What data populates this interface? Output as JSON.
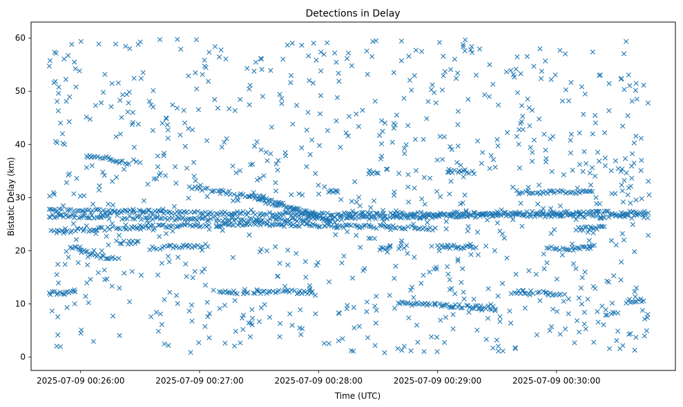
{
  "chart_data": {
    "type": "scatter",
    "title": "Detections in Delay",
    "xlabel": "Time (UTC)",
    "ylabel": "Bistatic Delay (km)",
    "marker": "x",
    "color": "#1f77b4",
    "grid": false,
    "xlim": [
      "2025-07-09 00:25:35",
      "2025-07-09 00:31:00"
    ],
    "ylim": [
      -2.5,
      63
    ],
    "x_ticks": [
      "2025-07-09 00:26:00",
      "2025-07-09 00:27:00",
      "2025-07-09 00:28:00",
      "2025-07-09 00:29:00",
      "2025-07-09 00:30:00"
    ],
    "y_ticks": [
      0,
      10,
      20,
      30,
      40,
      50,
      60
    ],
    "x_range": [
      "2025-07-09 00:25:44",
      "2025-07-09 00:30:47"
    ],
    "y_range": [
      0.8,
      59.8
    ],
    "tracks": [
      {
        "points": [
          [
            "2025-07-09 00:25:44",
            27.6
          ],
          [
            "2025-07-09 00:28:00",
            26.8
          ],
          [
            "2025-07-09 00:30:47",
            27.2
          ]
        ]
      },
      {
        "points": [
          [
            "2025-07-09 00:25:44",
            26.6
          ],
          [
            "2025-07-09 00:26:30",
            26.2
          ],
          [
            "2025-07-09 00:27:30",
            25.8
          ],
          [
            "2025-07-09 00:28:30",
            26.2
          ],
          [
            "2025-07-09 00:29:30",
            26.8
          ],
          [
            "2025-07-09 00:30:47",
            26.4
          ]
        ]
      },
      {
        "points": [
          [
            "2025-07-09 00:25:44",
            23.5
          ],
          [
            "2025-07-09 00:26:30",
            24.5
          ],
          [
            "2025-07-09 00:27:30",
            25.0
          ],
          [
            "2025-07-09 00:28:30",
            24.5
          ],
          [
            "2025-07-09 00:29:00",
            24.2
          ]
        ]
      },
      {
        "points": [
          [
            "2025-07-09 00:25:44",
            12.0
          ],
          [
            "2025-07-09 00:25:58",
            12.3
          ]
        ]
      },
      {
        "points": [
          [
            "2025-07-09 00:26:02",
            38.0
          ],
          [
            "2025-07-09 00:26:12",
            37.5
          ],
          [
            "2025-07-09 00:26:25",
            36.3
          ]
        ]
      },
      {
        "points": [
          [
            "2025-07-09 00:25:52",
            40.0
          ],
          [
            "2025-07-09 00:25:49",
            46.0
          ],
          [
            "2025-07-09 00:25:47",
            50.0
          ]
        ]
      },
      {
        "points": [
          [
            "2025-07-09 00:25:55",
            20.8
          ],
          [
            "2025-07-09 00:26:08",
            19.0
          ],
          [
            "2025-07-09 00:26:20",
            18.5
          ]
        ]
      },
      {
        "points": [
          [
            "2025-07-09 00:26:20",
            21.5
          ],
          [
            "2025-07-09 00:26:30",
            21.6
          ]
        ]
      },
      {
        "points": [
          [
            "2025-07-09 00:26:35",
            20.5
          ],
          [
            "2025-07-09 00:26:50",
            20.8
          ]
        ]
      },
      {
        "points": [
          [
            "2025-07-09 00:26:55",
            32.0
          ],
          [
            "2025-07-09 00:27:30",
            30.0
          ],
          [
            "2025-07-09 00:28:00",
            26.5
          ]
        ]
      },
      {
        "points": [
          [
            "2025-07-09 00:27:25",
            30.0
          ],
          [
            "2025-07-09 00:28:00",
            26.5
          ],
          [
            "2025-07-09 00:28:10",
            25.0
          ]
        ]
      },
      {
        "points": [
          [
            "2025-07-09 00:27:10",
            12.2
          ],
          [
            "2025-07-09 00:27:40",
            12.3
          ],
          [
            "2025-07-09 00:27:58",
            12.2
          ]
        ]
      },
      {
        "points": [
          [
            "2025-07-09 00:26:50",
            20.8
          ],
          [
            "2025-07-09 00:27:05",
            21.0
          ]
        ]
      },
      {
        "points": [
          [
            "2025-07-09 00:28:05",
            31.0
          ],
          [
            "2025-07-09 00:28:10",
            31.2
          ]
        ]
      },
      {
        "points": [
          [
            "2025-07-09 00:28:25",
            34.8
          ],
          [
            "2025-07-09 00:28:32",
            34.8
          ]
        ]
      },
      {
        "points": [
          [
            "2025-07-09 00:28:30",
            20.5
          ],
          [
            "2025-07-09 00:28:45",
            20.8
          ]
        ]
      },
      {
        "points": [
          [
            "2025-07-09 00:29:00",
            20.8
          ],
          [
            "2025-07-09 00:29:20",
            20.6
          ]
        ]
      },
      {
        "points": [
          [
            "2025-07-09 00:29:05",
            35.0
          ],
          [
            "2025-07-09 00:29:20",
            34.8
          ]
        ]
      },
      {
        "points": [
          [
            "2025-07-09 00:28:40",
            10.2
          ],
          [
            "2025-07-09 00:29:00",
            9.8
          ],
          [
            "2025-07-09 00:29:30",
            9.2
          ]
        ]
      },
      {
        "points": [
          [
            "2025-07-09 00:29:40",
            12.3
          ],
          [
            "2025-07-09 00:30:05",
            11.8
          ]
        ]
      },
      {
        "points": [
          [
            "2025-07-09 00:29:55",
            20.5
          ],
          [
            "2025-07-09 00:30:05",
            20.2
          ],
          [
            "2025-07-09 00:30:20",
            20.8
          ]
        ]
      },
      {
        "points": [
          [
            "2025-07-09 00:29:40",
            31.0
          ],
          [
            "2025-07-09 00:30:20",
            31.0
          ]
        ]
      },
      {
        "points": [
          [
            "2025-07-09 00:30:10",
            24.0
          ],
          [
            "2025-07-09 00:30:25",
            24.5
          ]
        ]
      },
      {
        "points": [
          [
            "2025-07-09 00:30:25",
            8.2
          ],
          [
            "2025-07-09 00:30:32",
            8.3
          ]
        ]
      },
      {
        "points": [
          [
            "2025-07-09 00:30:35",
            10.5
          ],
          [
            "2025-07-09 00:30:45",
            10.8
          ]
        ]
      }
    ],
    "noise_points": 900
  }
}
